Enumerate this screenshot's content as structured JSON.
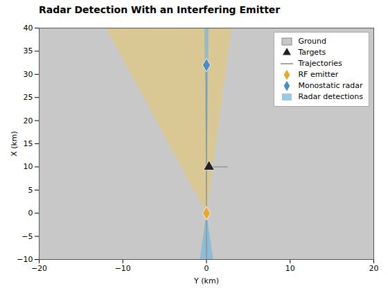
{
  "chart_data": {
    "type": "scatter",
    "title": "Radar Detection With an Interfering Emitter",
    "xlabel": "Y (km)",
    "ylabel": "X (km)",
    "xlim": [
      -20,
      20
    ],
    "ylim": [
      -10,
      40
    ],
    "xticks": [
      -20,
      -10,
      0,
      10,
      20
    ],
    "yticks": [
      -10,
      -5,
      0,
      5,
      10,
      15,
      20,
      25,
      30,
      35,
      40
    ],
    "grid": false,
    "legend": "upper right",
    "series": [
      {
        "name": "Ground",
        "type": "background",
        "color": "#c8c8c8"
      },
      {
        "name": "Targets",
        "type": "scatter",
        "marker": "triangle",
        "color": "#222222",
        "x": [
          0.3
        ],
        "values": [
          10
        ]
      },
      {
        "name": "Trajectories",
        "type": "line",
        "color": "#888888",
        "x": [
          0,
          0,
          null,
          0.3,
          2.5
        ],
        "values": [
          -10,
          32,
          null,
          10,
          10
        ]
      },
      {
        "name": "RF emitter",
        "type": "scatter",
        "marker": "diamond",
        "color": "#e8a830",
        "x": [
          0
        ],
        "values": [
          0
        ]
      },
      {
        "name": "Monostatic radar",
        "type": "scatter",
        "marker": "diamond",
        "color": "#4a8fc4",
        "x": [
          0
        ],
        "values": [
          32
        ]
      },
      {
        "type": "polygon",
        "color": "#dfc882",
        "x": [
          0,
          -12,
          3
        ],
        "values": [
          0,
          40,
          40
        ]
      },
      {
        "name": "Radar detections",
        "type": "polygon",
        "color": "#7ab8d8",
        "x": [
          0,
          -0.8,
          0.8,
          null,
          0,
          -0.25,
          0.25
        ],
        "values": [
          0,
          -10,
          -10,
          null,
          0,
          40,
          40
        ]
      }
    ]
  }
}
